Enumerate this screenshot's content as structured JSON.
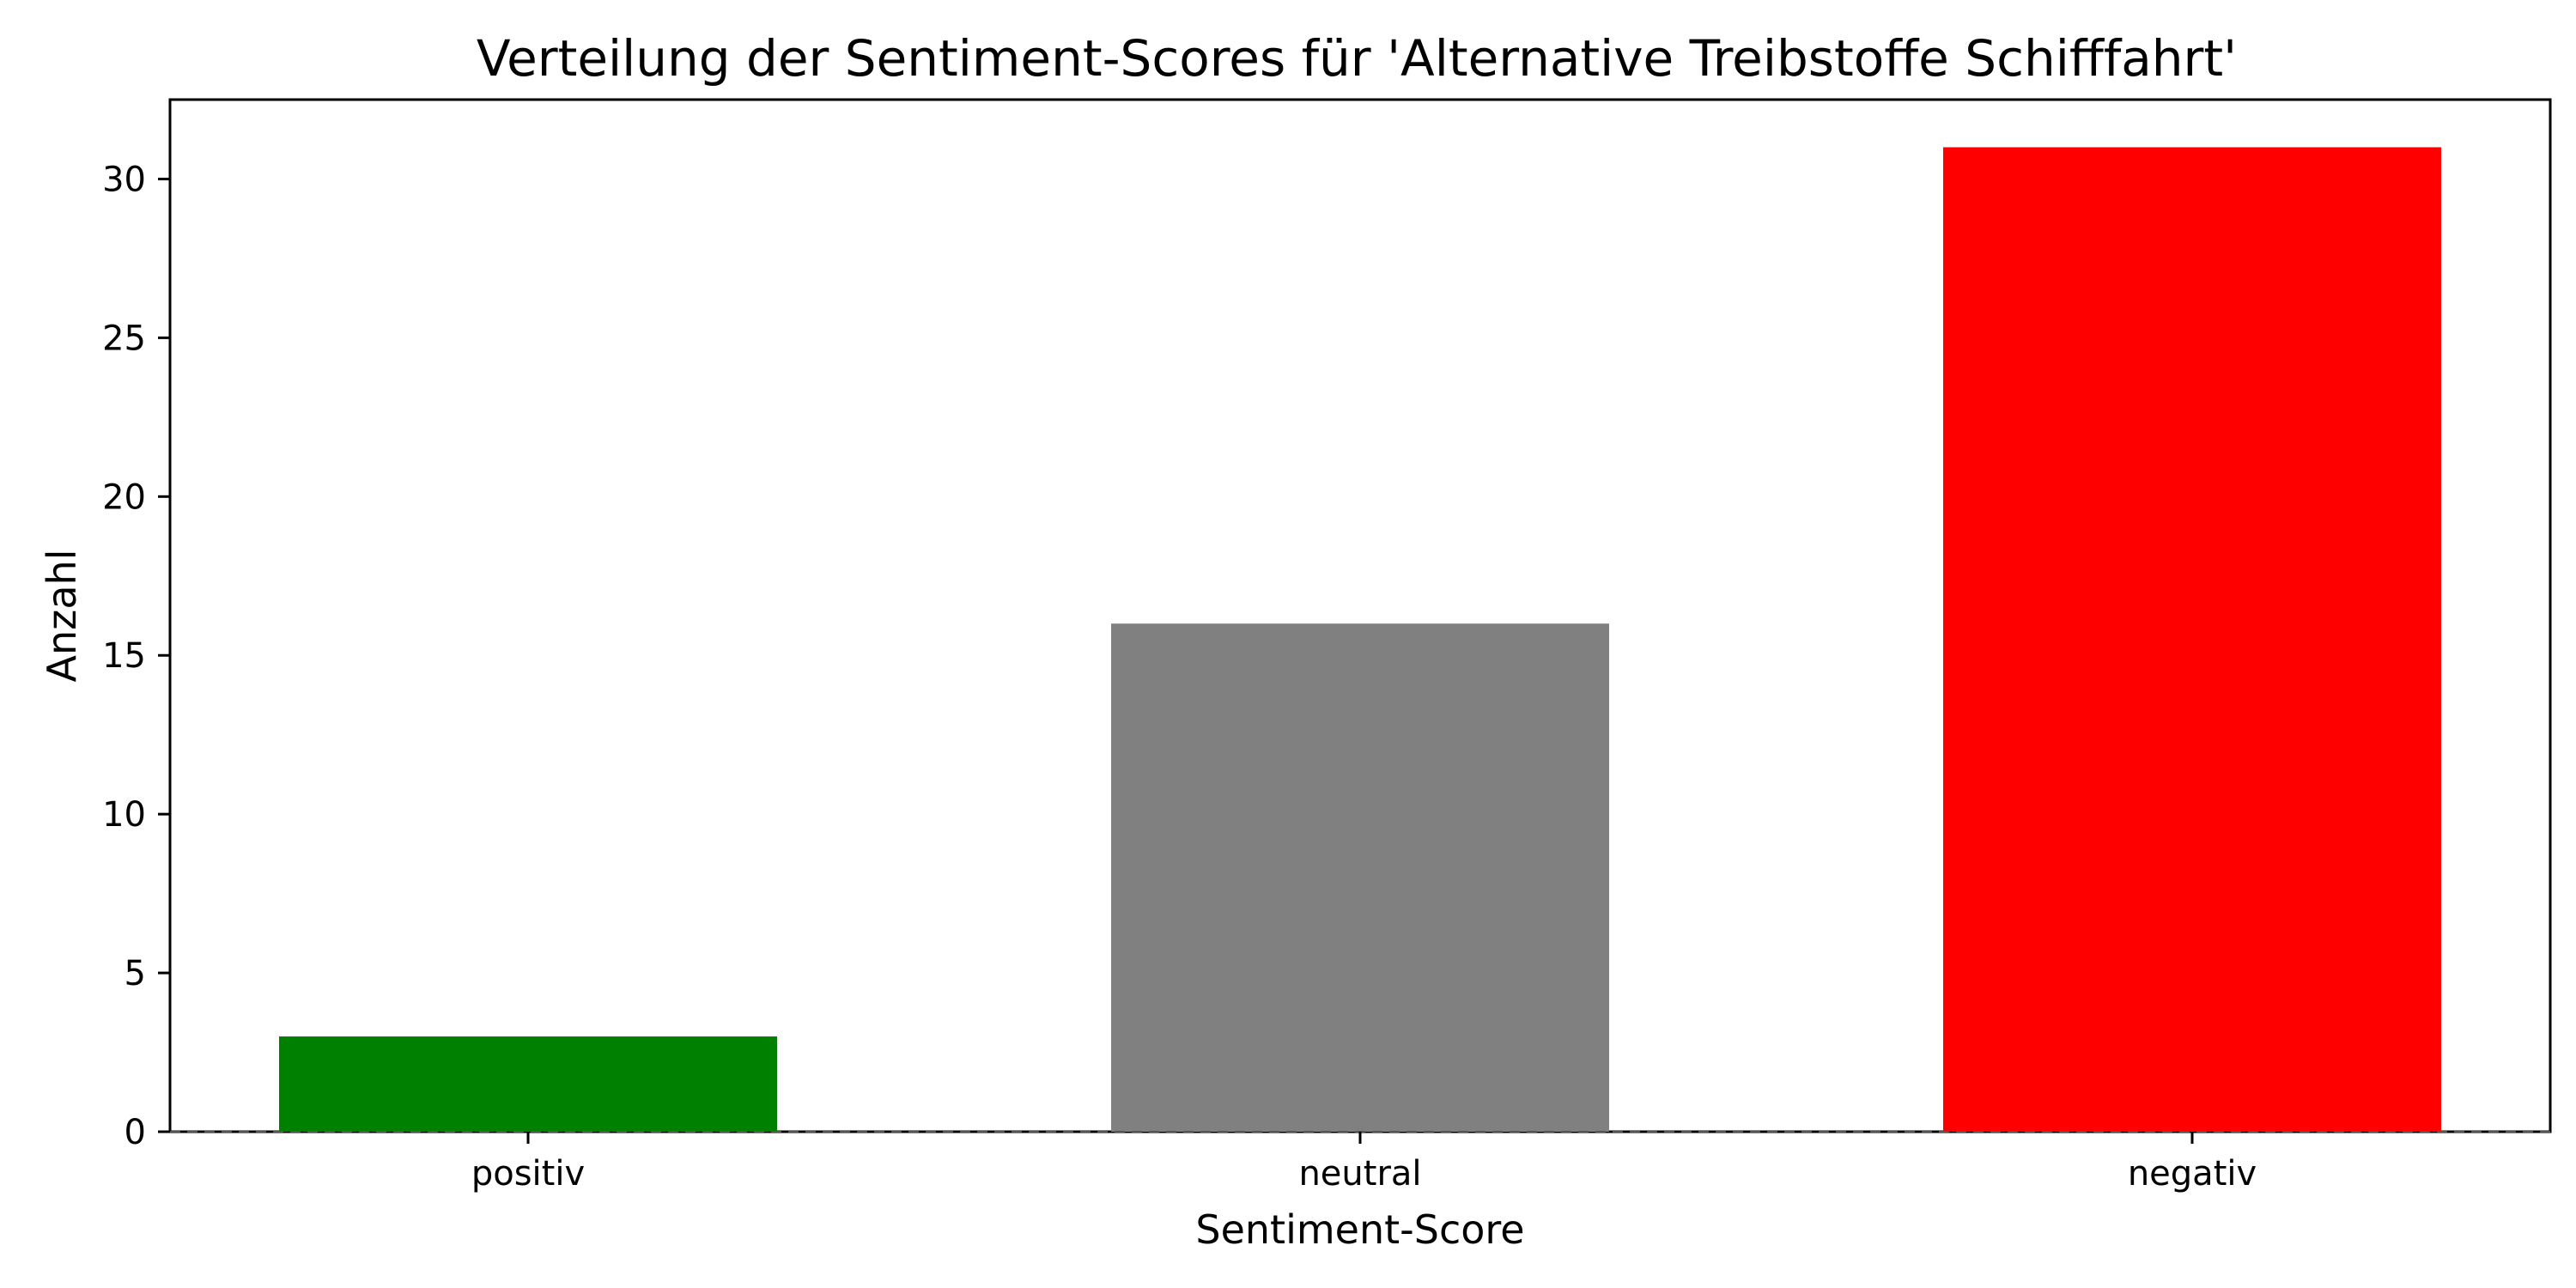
{
  "chart_data": {
    "type": "bar",
    "title": "Verteilung der Sentiment-Scores für 'Alternative Treibstoffe Schifffahrt'",
    "xlabel": "Sentiment-Score",
    "ylabel": "Anzahl",
    "categories": [
      "positiv",
      "neutral",
      "negativ"
    ],
    "values": [
      3,
      16,
      31
    ],
    "colors": [
      "#008000",
      "#808080",
      "#ff0000"
    ],
    "ylim": [
      0,
      32.5
    ],
    "yticks": [
      0,
      5,
      10,
      15,
      20,
      25,
      30
    ],
    "grid": false,
    "legend": "none",
    "baseline": {
      "value": 0,
      "style": "dashed"
    }
  }
}
